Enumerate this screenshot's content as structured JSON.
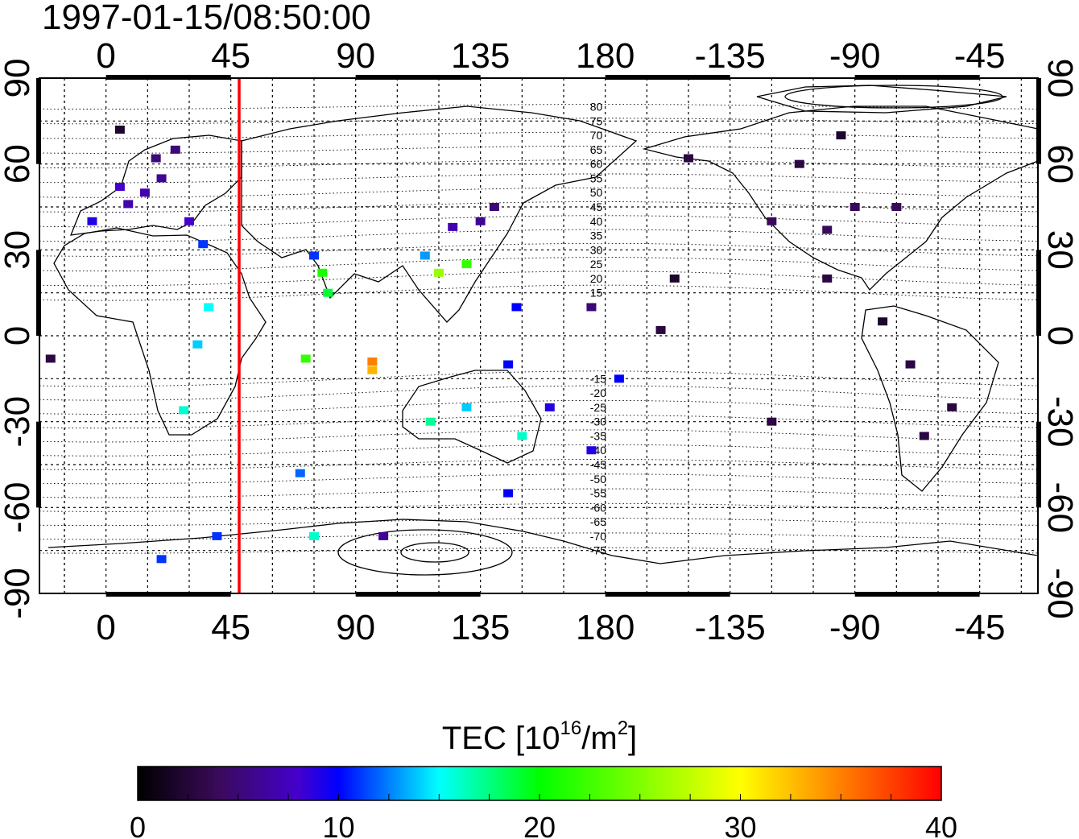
{
  "title": "1997-01-15/08:50:00",
  "map": {
    "lon_ticks_top": [
      "0",
      "45",
      "90",
      "135",
      "180",
      "-135",
      "-90",
      "-45"
    ],
    "lon_ticks_bottom": [
      "0",
      "45",
      "90",
      "135",
      "180",
      "-135",
      "-90",
      "-45"
    ],
    "lat_ticks_left": [
      "90",
      "60",
      "30",
      "0",
      "-30",
      "-60",
      "-90"
    ],
    "lat_ticks_right": [
      "90",
      "60",
      "30",
      "0",
      "-30",
      "-60",
      "-90"
    ],
    "magnetic_lat_labels_north": [
      "80",
      "75",
      "70",
      "65",
      "60",
      "55",
      "50",
      "45",
      "40",
      "35",
      "30",
      "25",
      "20",
      "15"
    ],
    "magnetic_lat_labels_south": [
      "-15",
      "-20",
      "-25",
      "-30",
      "-35",
      "-40",
      "-45",
      "-50",
      "-55",
      "-60",
      "-65",
      "-70",
      "-75"
    ],
    "marker_line_longitude": 48,
    "marker_line_color": "#ff0000"
  },
  "colorbar": {
    "label_main": "TEC  [10",
    "label_exp": "16",
    "label_unit": "/m",
    "label_unit_exp": "2",
    "label_close": "]",
    "tick_labels": [
      "0",
      "10",
      "20",
      "30",
      "40"
    ],
    "min": 0,
    "max": 40
  },
  "tec_observations": [
    {
      "lon": 8,
      "lat": 46,
      "tec": 7
    },
    {
      "lon": 14,
      "lat": 50,
      "tec": 7
    },
    {
      "lon": 20,
      "lat": 55,
      "tec": 6
    },
    {
      "lon": 18,
      "lat": 62,
      "tec": 5
    },
    {
      "lon": 25,
      "lat": 65,
      "tec": 5
    },
    {
      "lon": 5,
      "lat": 52,
      "tec": 8
    },
    {
      "lon": -5,
      "lat": 40,
      "tec": 9
    },
    {
      "lon": 30,
      "lat": 40,
      "tec": 8
    },
    {
      "lon": 35,
      "lat": 32,
      "tec": 11
    },
    {
      "lon": 37,
      "lat": 10,
      "tec": 15
    },
    {
      "lon": 33,
      "lat": -3,
      "tec": 14
    },
    {
      "lon": 28,
      "lat": -26,
      "tec": 16
    },
    {
      "lon": 75,
      "lat": 28,
      "tec": 11
    },
    {
      "lon": 80,
      "lat": 15,
      "tec": 19
    },
    {
      "lon": 78,
      "lat": 22,
      "tec": 21
    },
    {
      "lon": 72,
      "lat": -8,
      "tec": 22
    },
    {
      "lon": 96,
      "lat": -12,
      "tec": 33
    },
    {
      "lon": 96,
      "lat": -9,
      "tec": 35
    },
    {
      "lon": 115,
      "lat": 28,
      "tec": 13
    },
    {
      "lon": 120,
      "lat": 22,
      "tec": 26
    },
    {
      "lon": 125,
      "lat": 38,
      "tec": 7
    },
    {
      "lon": 135,
      "lat": 40,
      "tec": 6
    },
    {
      "lon": 140,
      "lat": 45,
      "tec": 5
    },
    {
      "lon": 130,
      "lat": 25,
      "tec": 22
    },
    {
      "lon": 148,
      "lat": 10,
      "tec": 10
    },
    {
      "lon": 145,
      "lat": -10,
      "tec": 10
    },
    {
      "lon": 117,
      "lat": -30,
      "tec": 17
    },
    {
      "lon": 130,
      "lat": -25,
      "tec": 14
    },
    {
      "lon": 150,
      "lat": -35,
      "tec": 16
    },
    {
      "lon": 175,
      "lat": -40,
      "tec": 9
    },
    {
      "lon": 185,
      "lat": -15,
      "tec": 10
    },
    {
      "lon": 70,
      "lat": -48,
      "tec": 12
    },
    {
      "lon": 75,
      "lat": -70,
      "tec": 16
    },
    {
      "lon": 100,
      "lat": -70,
      "tec": 6
    },
    {
      "lon": 40,
      "lat": -70,
      "tec": 11
    },
    {
      "lon": 20,
      "lat": -78,
      "tec": 11
    },
    {
      "lon": -120,
      "lat": 40,
      "tec": 4
    },
    {
      "lon": -100,
      "lat": 37,
      "tec": 4
    },
    {
      "lon": -90,
      "lat": 45,
      "tec": 4
    },
    {
      "lon": -75,
      "lat": 45,
      "tec": 4
    },
    {
      "lon": -110,
      "lat": 60,
      "tec": 3
    },
    {
      "lon": -95,
      "lat": 70,
      "tec": 2
    },
    {
      "lon": -150,
      "lat": 62,
      "tec": 3
    },
    {
      "lon": -155,
      "lat": 20,
      "tec": 2
    },
    {
      "lon": -100,
      "lat": 20,
      "tec": 3
    },
    {
      "lon": -80,
      "lat": 5,
      "tec": 2
    },
    {
      "lon": -70,
      "lat": -10,
      "tec": 3
    },
    {
      "lon": -55,
      "lat": -25,
      "tec": 3
    },
    {
      "lon": -65,
      "lat": -35,
      "tec": 3
    },
    {
      "lon": -120,
      "lat": -30,
      "tec": 3
    },
    {
      "lon": -160,
      "lat": 2,
      "tec": 3
    },
    {
      "lon": -20,
      "lat": -8,
      "tec": 3
    },
    {
      "lon": 5,
      "lat": 72,
      "tec": 2
    },
    {
      "lon": 175,
      "lat": 10,
      "tec": 5
    },
    {
      "lon": 160,
      "lat": -25,
      "tec": 9
    },
    {
      "lon": 145,
      "lat": -55,
      "tec": 10
    }
  ]
}
